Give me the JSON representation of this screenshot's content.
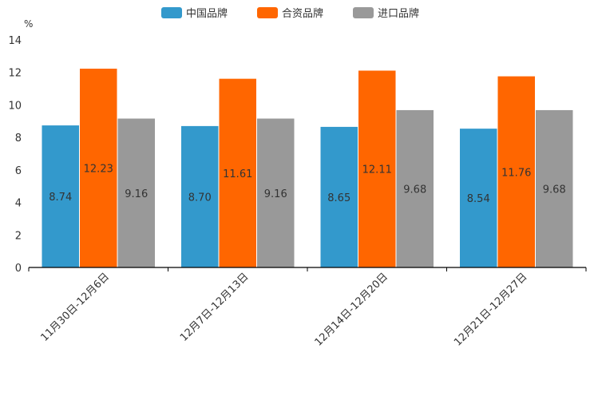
{
  "chart_data": {
    "type": "bar",
    "title": "",
    "xlabel": "",
    "ylabel": "%",
    "ylim": [
      0,
      14
    ],
    "yticks": [
      0,
      2,
      4,
      6,
      8,
      10,
      12,
      14
    ],
    "grid": false,
    "legend_position": "top-center",
    "categories": [
      "11月30日-12月6日",
      "12月7日-12月13日",
      "12月14日-12月20日",
      "12月21日-12月27日"
    ],
    "series": [
      {
        "name": "中国品牌",
        "color": "#3399cc",
        "values": [
          8.74,
          8.7,
          8.65,
          8.54
        ],
        "labels": [
          "8.74",
          "8.70",
          "8.65",
          "8.54"
        ]
      },
      {
        "name": "合资品牌",
        "color": "#ff6600",
        "values": [
          12.23,
          11.61,
          12.11,
          11.76
        ],
        "labels": [
          "12.23",
          "11.61",
          "12.11",
          "11.76"
        ]
      },
      {
        "name": "进口品牌",
        "color": "#999999",
        "values": [
          9.16,
          9.16,
          9.68,
          9.68
        ],
        "labels": [
          "9.16",
          "9.16",
          "9.68",
          "9.68"
        ]
      }
    ]
  }
}
